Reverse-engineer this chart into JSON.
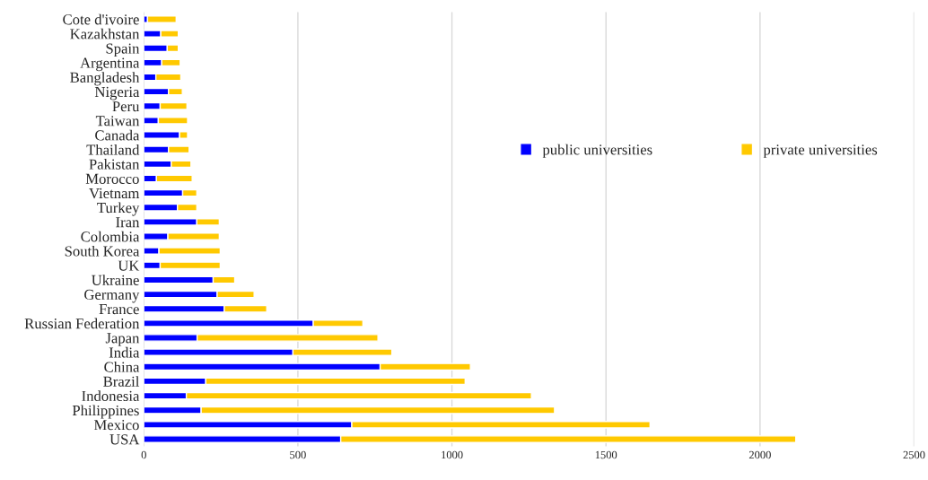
{
  "chart_data": {
    "type": "bar",
    "orientation": "horizontal",
    "stacked": true,
    "categories": [
      "Cote d'ivoire",
      "Kazakhstan",
      "Spain",
      "Argentina",
      "Bangladesh",
      "Nigeria",
      "Peru",
      "Taiwan",
      "Canada",
      "Thailand",
      "Pakistan",
      "Morocco",
      "Vietnam",
      "Turkey",
      "Iran",
      "Colombia",
      "South Korea",
      "UK",
      "Ukraine",
      "Germany",
      "France",
      "Russian Federation",
      "Japan",
      "India",
      "China",
      "Brazil",
      "Indonesia",
      "Philippines",
      "Mexico",
      "USA"
    ],
    "series": [
      {
        "name": "public universities",
        "color": "#0000ff",
        "values": [
          12,
          55,
          76,
          58,
          39,
          80,
          53,
          47,
          116,
          80,
          89,
          41,
          126,
          109,
          172,
          78,
          49,
          53,
          225,
          238,
          261,
          550,
          173,
          484,
          767,
          201,
          138,
          186,
          675,
          639
        ]
      },
      {
        "name": "private universities",
        "color": "#ffc900",
        "values": [
          93,
          57,
          36,
          60,
          81,
          45,
          87,
          95,
          26,
          67,
          64,
          116,
          46,
          63,
          73,
          167,
          199,
          195,
          70,
          120,
          138,
          161,
          587,
          321,
          293,
          842,
          1120,
          1147,
          968,
          1477
        ]
      }
    ],
    "xlim": [
      0,
      2500
    ],
    "xticks": [
      0,
      500,
      1000,
      1500,
      2000,
      2500
    ],
    "grid": "x",
    "legend": "right"
  }
}
